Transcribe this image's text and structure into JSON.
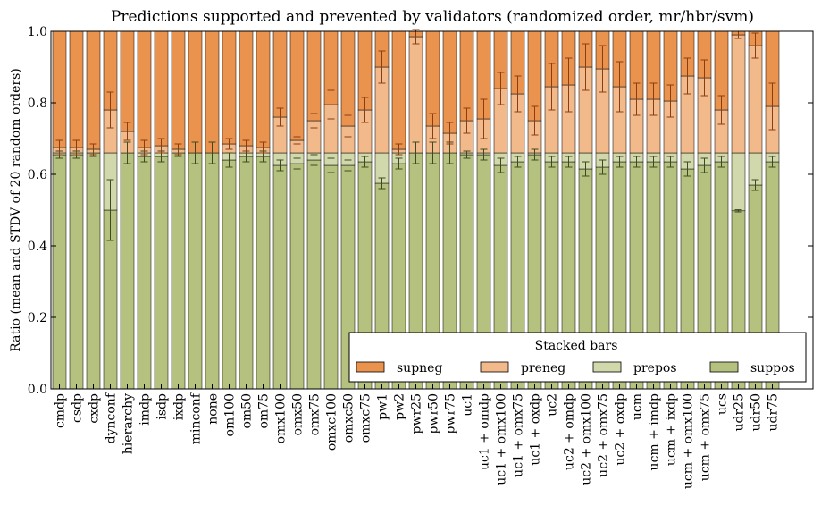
{
  "chart_data": {
    "type": "bar",
    "stacked": true,
    "title": "Predictions supported and prevented by validators (randomized order, mr/hbr/svm)",
    "xlabel": "",
    "ylabel": "Ratio (mean and STDV of 20 random orders)",
    "ylim": [
      0,
      1
    ],
    "yticks": [
      "0.0",
      "0.2",
      "0.4",
      "0.6",
      "0.8",
      "1.0"
    ],
    "grid": false,
    "legend": {
      "title": "Stacked bars",
      "placement": "lower-right"
    },
    "categories": [
      "cmdp",
      "csdp",
      "cxdp",
      "dynconf",
      "hierarchy",
      "imdp",
      "isdp",
      "ixdp",
      "minconf",
      "none",
      "om100",
      "om50",
      "om75",
      "omx100",
      "omx50",
      "omx75",
      "omxc100",
      "omxc50",
      "omxc75",
      "pw1",
      "pw2",
      "pwr25",
      "pwr50",
      "pwr75",
      "uc1",
      "uc1 + omdp",
      "uc1 + omx100",
      "uc1 + omx75",
      "uc1 + oxdp",
      "uc2",
      "uc2 + omdp",
      "uc2 + omx100",
      "uc2 + omx75",
      "uc2 + oxdp",
      "ucm",
      "ucm + imdp",
      "ucm + ixdp",
      "ucm + omx100",
      "ucm + omx75",
      "ucs",
      "udr25",
      "udr50",
      "udr75"
    ],
    "series": [
      {
        "name": "suppos",
        "color": "#b5c17e",
        "values": [
          0.655,
          0.655,
          0.66,
          0.5,
          0.66,
          0.65,
          0.65,
          0.66,
          0.66,
          0.66,
          0.64,
          0.65,
          0.65,
          0.625,
          0.63,
          0.64,
          0.625,
          0.625,
          0.635,
          0.575,
          0.63,
          0.66,
          0.66,
          0.66,
          0.655,
          0.655,
          0.625,
          0.635,
          0.655,
          0.635,
          0.635,
          0.615,
          0.62,
          0.635,
          0.635,
          0.635,
          0.635,
          0.615,
          0.625,
          0.635,
          0.498,
          0.57,
          0.635
        ],
        "err": [
          0.01,
          0.01,
          0.01,
          0.085,
          0.03,
          0.015,
          0.015,
          0.01,
          0.03,
          0.03,
          0.02,
          0.015,
          0.015,
          0.015,
          0.015,
          0.015,
          0.02,
          0.015,
          0.015,
          0.015,
          0.015,
          0.03,
          0.03,
          0.03,
          0.01,
          0.015,
          0.02,
          0.015,
          0.015,
          0.015,
          0.015,
          0.02,
          0.02,
          0.015,
          0.015,
          0.015,
          0.015,
          0.02,
          0.02,
          0.015,
          0.003,
          0.015,
          0.015
        ]
      },
      {
        "name": "prepos",
        "color": "#d1d8ab",
        "values": [
          0.005,
          0.005,
          0.0,
          0.16,
          0.0,
          0.01,
          0.01,
          0.0,
          0.0,
          0.0,
          0.02,
          0.01,
          0.01,
          0.035,
          0.03,
          0.02,
          0.035,
          0.035,
          0.025,
          0.085,
          0.03,
          0.0,
          0.0,
          0.0,
          0.005,
          0.005,
          0.035,
          0.025,
          0.005,
          0.025,
          0.025,
          0.045,
          0.04,
          0.025,
          0.025,
          0.025,
          0.025,
          0.045,
          0.035,
          0.025,
          0.162,
          0.09,
          0.025
        ]
      },
      {
        "name": "preneg",
        "color": "#f2b98a",
        "values": [
          0.015,
          0.015,
          0.01,
          0.12,
          0.06,
          0.015,
          0.02,
          0.01,
          0.0,
          0.0,
          0.025,
          0.02,
          0.015,
          0.1,
          0.035,
          0.09,
          0.135,
          0.075,
          0.12,
          0.24,
          0.01,
          0.325,
          0.075,
          0.055,
          0.09,
          0.095,
          0.18,
          0.165,
          0.09,
          0.185,
          0.19,
          0.24,
          0.235,
          0.185,
          0.15,
          0.15,
          0.145,
          0.215,
          0.21,
          0.12,
          0.33,
          0.3,
          0.13
        ],
        "err": [
          0.02,
          0.02,
          0.015,
          0.05,
          0.025,
          0.02,
          0.02,
          0.015,
          0.0,
          0.0,
          0.015,
          0.015,
          0.015,
          0.025,
          0.01,
          0.02,
          0.04,
          0.03,
          0.035,
          0.045,
          0.015,
          0.02,
          0.035,
          0.03,
          0.035,
          0.055,
          0.045,
          0.05,
          0.04,
          0.065,
          0.075,
          0.065,
          0.065,
          0.07,
          0.045,
          0.045,
          0.045,
          0.05,
          0.05,
          0.04,
          0.01,
          0.035,
          0.065
        ]
      },
      {
        "name": "supneg",
        "color": "#e9934f",
        "values": [
          0.325,
          0.325,
          0.33,
          0.22,
          0.28,
          0.325,
          0.32,
          0.33,
          0.34,
          0.34,
          0.315,
          0.32,
          0.325,
          0.24,
          0.305,
          0.25,
          0.205,
          0.265,
          0.22,
          0.1,
          0.33,
          0.015,
          0.265,
          0.285,
          0.25,
          0.245,
          0.16,
          0.175,
          0.25,
          0.155,
          0.15,
          0.1,
          0.105,
          0.155,
          0.19,
          0.19,
          0.195,
          0.125,
          0.13,
          0.22,
          0.01,
          0.04,
          0.21
        ]
      }
    ]
  }
}
